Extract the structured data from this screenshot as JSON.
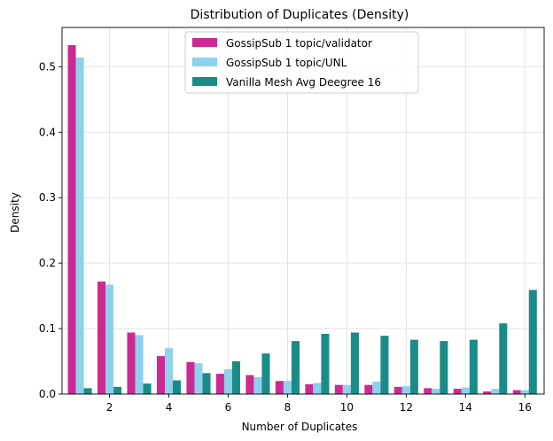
{
  "chart_data": {
    "type": "bar",
    "title": "Distribution of Duplicates (Density)",
    "xlabel": "Number of Duplicates",
    "ylabel": "Density",
    "xlim": [
      0.4,
      16.65
    ],
    "ylim": [
      0,
      0.56
    ],
    "xticks": [
      2,
      4,
      6,
      8,
      10,
      12,
      14,
      16
    ],
    "yticks": [
      0.0,
      0.1,
      0.2,
      0.3,
      0.4,
      0.5
    ],
    "ytick_labels": [
      "0.0",
      "0.1",
      "0.2",
      "0.3",
      "0.4",
      "0.5"
    ],
    "grid": true,
    "legend_position": "top-center",
    "categories": [
      1,
      2,
      3,
      4,
      5,
      6,
      7,
      8,
      9,
      10,
      11,
      12,
      13,
      14,
      15,
      16
    ],
    "series": [
      {
        "name": "GossipSub 1 topic/validator",
        "color": "#cc2a92",
        "values": [
          0.533,
          0.172,
          0.094,
          0.058,
          0.049,
          0.031,
          0.029,
          0.02,
          0.015,
          0.014,
          0.014,
          0.011,
          0.009,
          0.008,
          0.004,
          0.006
        ]
      },
      {
        "name": "GossipSub 1 topic/UNL",
        "color": "#8fd0ec",
        "values": [
          0.514,
          0.167,
          0.09,
          0.07,
          0.047,
          0.038,
          0.026,
          0.02,
          0.017,
          0.014,
          0.019,
          0.012,
          0.008,
          0.01,
          0.008,
          0.006
        ]
      },
      {
        "name": "Vanilla Mesh Avg Deegree 16",
        "color": "#1a8c88",
        "values": [
          0.009,
          0.011,
          0.016,
          0.021,
          0.032,
          0.05,
          0.062,
          0.081,
          0.092,
          0.094,
          0.089,
          0.083,
          0.081,
          0.083,
          0.108,
          0.159
        ]
      }
    ]
  }
}
